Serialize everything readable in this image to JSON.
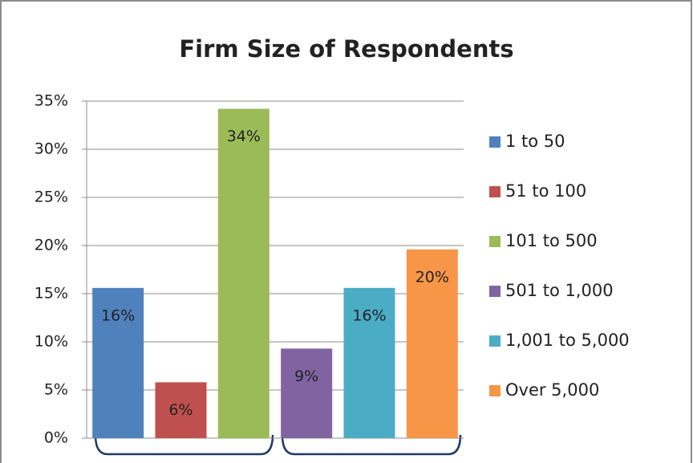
{
  "chart_data": {
    "type": "bar",
    "title": "Firm Size of Respondents",
    "series": [
      {
        "name": "1 to 50",
        "color": "#4f81bd",
        "values": [
          15.6
        ],
        "value_labels": [
          "16%"
        ]
      },
      {
        "name": "51 to 100",
        "color": "#c0504d",
        "values": [
          5.8
        ],
        "value_labels": [
          "6%"
        ]
      },
      {
        "name": "101 to 500",
        "color": "#9bbb59",
        "values": [
          34.2
        ],
        "value_labels": [
          "34%"
        ]
      },
      {
        "name": "501 to 1,000",
        "color": "#8064a2",
        "values": [
          9.3
        ],
        "value_labels": [
          "9%"
        ]
      },
      {
        "name": "1,001 to 5,000",
        "color": "#4bacc6",
        "values": [
          15.6
        ],
        "value_labels": [
          "16%"
        ]
      },
      {
        "name": "Over 5,000",
        "color": "#f79646",
        "values": [
          19.6
        ],
        "value_labels": [
          "20%"
        ]
      }
    ],
    "ylim": [
      0,
      35
    ],
    "yticks": [
      {
        "value": 0,
        "label": "0%"
      },
      {
        "value": 5,
        "label": "5%"
      },
      {
        "value": 10,
        "label": "10%"
      },
      {
        "value": 15,
        "label": "15%"
      },
      {
        "value": 20,
        "label": "20%"
      },
      {
        "value": 25,
        "label": "25%"
      },
      {
        "value": 30,
        "label": "30%"
      },
      {
        "value": 35,
        "label": "35%"
      }
    ],
    "grid": true,
    "legend": "right"
  }
}
